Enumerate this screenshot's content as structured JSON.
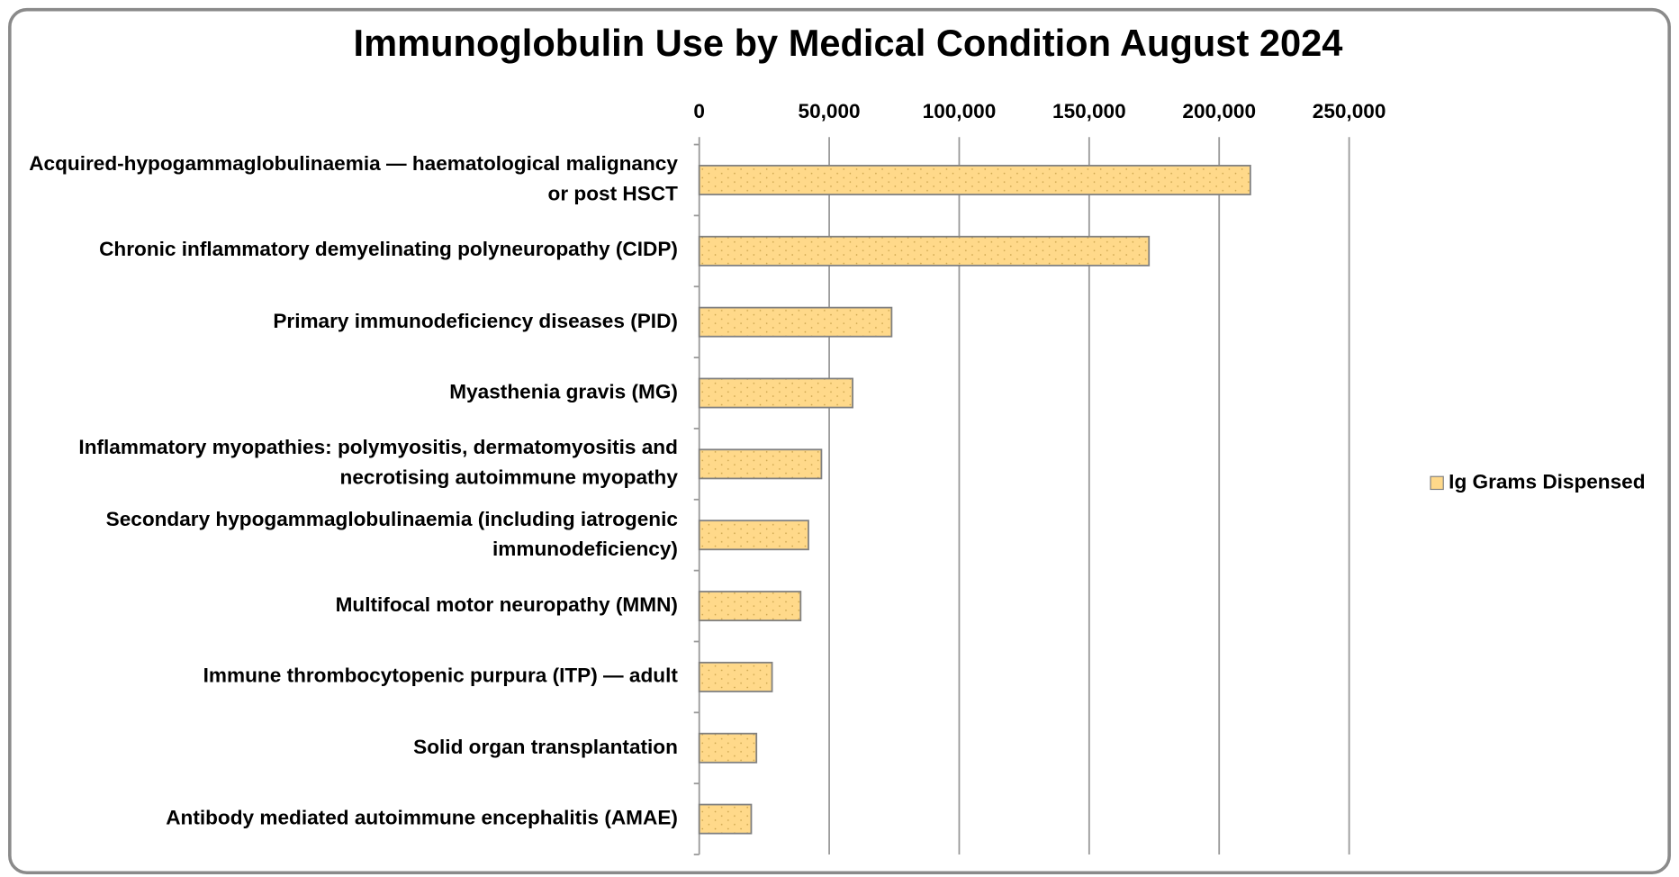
{
  "chart_data": {
    "type": "bar",
    "orientation": "horizontal",
    "title": "Immunoglobulin Use by Medical Condition August 2024",
    "categories": [
      "Acquired-hypogammaglobulinaemia — haematological malignancy or post HSCT",
      "Chronic inflammatory demyelinating polyneuropathy (CIDP)",
      "Primary immunodeficiency diseases (PID)",
      "Myasthenia gravis (MG)",
      "Inflammatory myopathies: polymyositis, dermatomyositis and necrotising autoimmune myopathy",
      "Secondary hypogammaglobulinaemia (including iatrogenic immunodeficiency)",
      "Multifocal motor neuropathy (MMN)",
      "Immune thrombocytopenic purpura (ITP) — adult",
      "Solid organ transplantation",
      "Antibody mediated autoimmune encephalitis (AMAE)"
    ],
    "series": [
      {
        "name": "Ig Grams Dispensed",
        "color": "#ffd98a",
        "values": [
          212000,
          173000,
          74000,
          59000,
          47000,
          42000,
          39000,
          28000,
          22000,
          20000
        ]
      }
    ],
    "xlim": [
      0,
      250000
    ],
    "xticks": [
      0,
      {
        "value": 50000,
        "label": "50,000"
      },
      {
        "value": 100000,
        "label": "100,000"
      },
      {
        "value": 150000,
        "label": "150,000"
      },
      {
        "value": 200000,
        "label": "200,000"
      },
      {
        "value": 250000,
        "label": "250,000"
      }
    ],
    "grid": true,
    "legend": "right"
  }
}
